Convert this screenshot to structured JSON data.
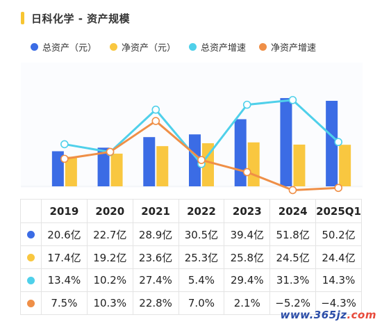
{
  "title": "日科化学 - 资产规模",
  "colors": {
    "title_accent": "#f7c531",
    "total_assets": "#3b6ce5",
    "net_assets": "#f9c740",
    "total_growth": "#4fd0ea",
    "net_growth": "#ef8f47",
    "watermark_dot": "#e84a3b",
    "watermark_text": "#2b4da8"
  },
  "chart_data": {
    "type": "bar",
    "categories": [
      "2019",
      "2020",
      "2021",
      "2022",
      "2023",
      "2024",
      "2025Q1"
    ],
    "series": [
      {
        "name": "总资产（元）",
        "kind": "bar",
        "values": [
          20.6,
          22.7,
          28.9,
          30.5,
          39.4,
          51.8,
          50.2
        ],
        "unit": "亿"
      },
      {
        "name": "净资产（元）",
        "kind": "bar",
        "values": [
          17.4,
          19.2,
          23.6,
          25.3,
          25.8,
          24.5,
          24.4
        ],
        "unit": "亿"
      },
      {
        "name": "总资产增速",
        "kind": "line",
        "values": [
          13.4,
          10.2,
          27.4,
          5.4,
          29.4,
          31.3,
          14.3
        ],
        "unit": "%"
      },
      {
        "name": "净资产增速",
        "kind": "line",
        "values": [
          7.5,
          10.3,
          22.8,
          7.0,
          2.1,
          -5.2,
          -4.3
        ],
        "unit": "%"
      }
    ],
    "legend_position": "top-left",
    "grid": false
  },
  "table": {
    "header": [
      "2019",
      "2020",
      "2021",
      "2022",
      "2023",
      "2024",
      "2025Q1"
    ],
    "rows": [
      {
        "series": "total_assets",
        "cells": [
          "20.6亿",
          "22.7亿",
          "28.9亿",
          "30.5亿",
          "39.4亿",
          "51.8亿",
          "50.2亿"
        ]
      },
      {
        "series": "net_assets",
        "cells": [
          "17.4亿",
          "19.2亿",
          "23.6亿",
          "25.3亿",
          "25.8亿",
          "24.5亿",
          "24.4亿"
        ]
      },
      {
        "series": "total_growth",
        "cells": [
          "13.4%",
          "10.2%",
          "27.4%",
          "5.4%",
          "29.4%",
          "31.3%",
          "14.3%"
        ]
      },
      {
        "series": "net_growth",
        "cells": [
          "7.5%",
          "10.3%",
          "22.8%",
          "7.0%",
          "2.1%",
          "−5.2%",
          "−4.3%"
        ]
      }
    ]
  },
  "watermark": {
    "prefix": "www.",
    "name": "365jz",
    "suffix": ".com"
  }
}
